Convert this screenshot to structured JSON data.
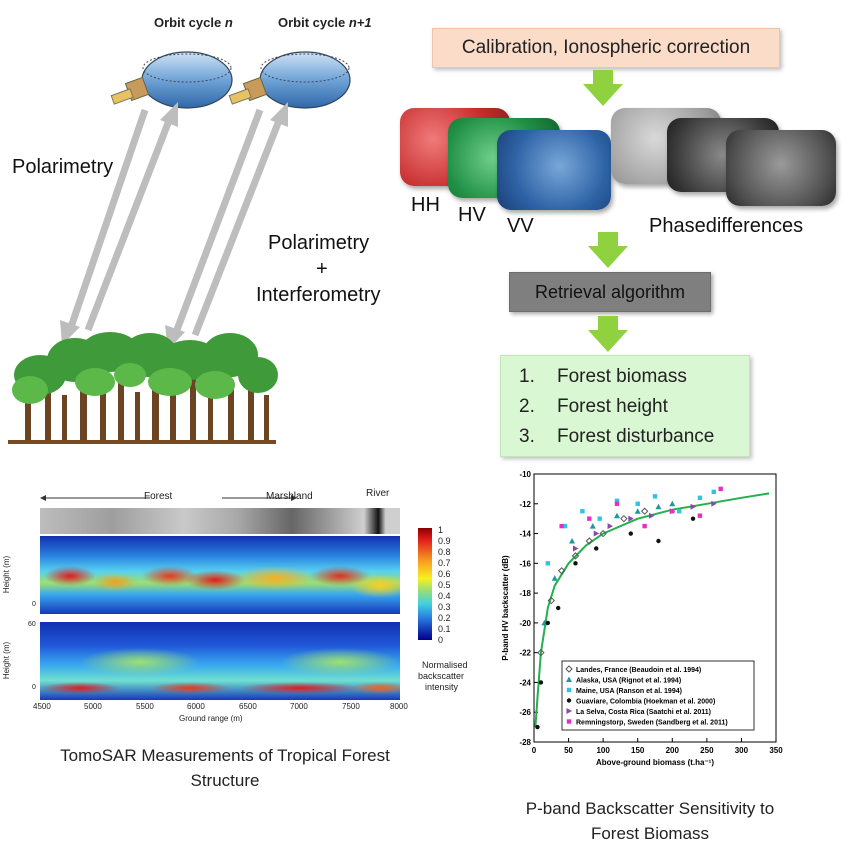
{
  "orbit": {
    "cycle_n": "Orbit cycle n",
    "cycle_n_prefix": "Orbit cycle ",
    "cycle_n_var": "n",
    "cycle_n1_prefix": "Orbit cycle ",
    "cycle_n1_var": "n+1"
  },
  "labels": {
    "polarimetry": "Polarimetry",
    "pol_interf_1": "Polarimetry",
    "pol_interf_plus": "+",
    "pol_interf_2": "Interferometry"
  },
  "flow": {
    "calibration": "Calibration, Ionospheric correction",
    "channels": [
      "HH",
      "HV",
      "VV"
    ],
    "phase": "Phasedifferences",
    "retrieval": "Retrieval algorithm",
    "outputs": [
      {
        "num": "1.",
        "text": "Forest biomass"
      },
      {
        "num": "2.",
        "text": "Forest height"
      },
      {
        "num": "3.",
        "text": "Forest disturbance"
      }
    ]
  },
  "tomo": {
    "top_labels": {
      "forest": "Forest",
      "marshland": "Marshland",
      "river": "River"
    },
    "ylabel": "Height (m)",
    "xlabel": "Ground range (m)",
    "xticks": [
      "4500",
      "5000",
      "5500",
      "6000",
      "6500",
      "7000",
      "7500",
      "8000"
    ],
    "yticks_top": [
      "0"
    ],
    "yticks_bottom": [
      "60",
      "0"
    ],
    "colorbar_ticks": [
      "1",
      "0.9",
      "0.8",
      "0.7",
      "0.6",
      "0.5",
      "0.4",
      "0.3",
      "0.2",
      "0.1",
      "0"
    ],
    "colorbar_label": [
      "Normalised",
      "backscatter",
      "intensity"
    ],
    "caption": [
      "TomoSAR Measurements of Tropical Forest",
      "Structure"
    ]
  },
  "caption_right": [
    "P-band Backscatter Sensitivity to",
    "Forest Biomass"
  ],
  "chart_data": {
    "type": "scatter",
    "xlabel": "Above-ground biomass (t.ha⁻¹)",
    "ylabel": "P-band HV backscatter (dB)",
    "xlim": [
      0,
      350
    ],
    "ylim": [
      -28,
      -10
    ],
    "xticks": [
      0,
      50,
      100,
      150,
      200,
      250,
      300,
      350
    ],
    "yticks": [
      -10,
      -12,
      -14,
      -16,
      -18,
      -20,
      -22,
      -24,
      -26,
      -28
    ],
    "legend_position": "bottom-left",
    "series": [
      {
        "name": "Landes, France (Beaudoin et al. 1994)",
        "color": "#555555",
        "marker": "open-diamond",
        "x": [
          10,
          25,
          40,
          60,
          80,
          100,
          130,
          160
        ],
        "y": [
          -22,
          -18.5,
          -16.5,
          -15.5,
          -14.5,
          -14,
          -13,
          -12.5
        ]
      },
      {
        "name": "Alaska, USA (Rignot et al. 1994)",
        "color": "#1a9aa0",
        "marker": "triangle",
        "x": [
          15,
          30,
          55,
          85,
          120,
          150,
          180,
          200
        ],
        "y": [
          -20,
          -17,
          -14.5,
          -13.5,
          -12.8,
          -12.5,
          -12.2,
          -12
        ]
      },
      {
        "name": "Maine, USA (Ranson et al. 1994)",
        "color": "#2ec4e6",
        "marker": "square",
        "x": [
          20,
          45,
          70,
          95,
          120,
          150,
          175,
          210,
          240,
          260
        ],
        "y": [
          -16,
          -13.5,
          -12.5,
          -13,
          -11.8,
          -12,
          -11.5,
          -12.5,
          -11.6,
          -11.2
        ]
      },
      {
        "name": "Guaviare, Colombia (Hoekman et al. 2000)",
        "color": "#111111",
        "marker": "dot",
        "x": [
          5,
          10,
          20,
          35,
          60,
          90,
          140,
          180,
          230
        ],
        "y": [
          -27,
          -24,
          -20,
          -19,
          -16,
          -15,
          -14,
          -14.5,
          -13
        ]
      },
      {
        "name": "La Selva, Costa Rica (Saatchi et al. 2011)",
        "color": "#8e44ad",
        "marker": "triangle-right",
        "x": [
          60,
          90,
          110,
          140,
          170,
          200,
          230,
          260
        ],
        "y": [
          -15,
          -14,
          -13.5,
          -13,
          -12.8,
          -12.5,
          -12.2,
          -12
        ]
      },
      {
        "name": "Remningstorp, Sweden (Sandberg et al. 2011)",
        "color": "#e62ec6",
        "marker": "square",
        "x": [
          40,
          80,
          120,
          160,
          200,
          240,
          270
        ],
        "y": [
          -13.5,
          -13,
          -12,
          -13.5,
          -12.5,
          -12.8,
          -11
        ]
      }
    ],
    "fit": {
      "color": "#22b14c",
      "x": [
        2,
        5,
        10,
        20,
        30,
        50,
        75,
        100,
        150,
        200,
        250,
        300,
        340
      ],
      "y": [
        -27,
        -25,
        -22,
        -19,
        -17.5,
        -16,
        -14.8,
        -14,
        -13,
        -12.4,
        -12,
        -11.6,
        -11.3
      ]
    }
  }
}
